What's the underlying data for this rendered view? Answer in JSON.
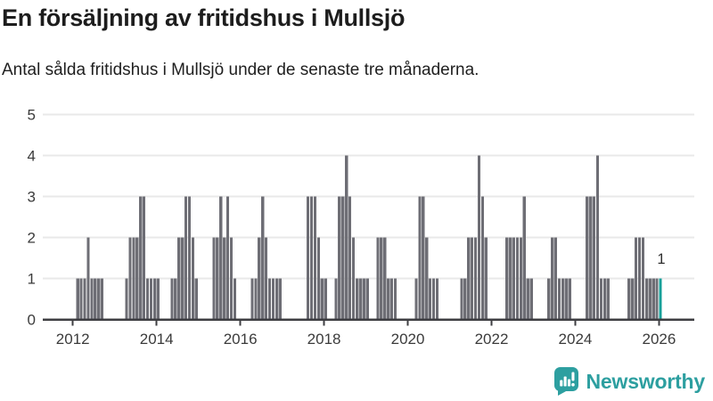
{
  "header": {
    "title": "En försäljning av fritidshus i Mullsjö",
    "subtitle": "Antal sålda fritidshus i Mullsjö under de senaste tre månaderna."
  },
  "footer": {
    "brand": "Newsworthy",
    "brand_color": "#2d9fa0",
    "logo_icon": "speech-bubble-bar-chart-icon"
  },
  "chart_data": {
    "type": "bar",
    "title": "En försäljning av fritidshus i Mullsjö",
    "subtitle": "Antal sålda fritidshus i Mullsjö under de senaste tre månaderna.",
    "x_start": "2012-01",
    "x_interval": "month",
    "x_ticks": [
      "2012",
      "2014",
      "2016",
      "2018",
      "2020",
      "2022",
      "2024",
      "2026"
    ],
    "y_ticks": [
      0,
      1,
      2,
      3,
      4,
      5
    ],
    "ylim": [
      0,
      5
    ],
    "grid": true,
    "legend": "none",
    "bar_color": "#6e6e75",
    "highlight_color": "#17a09a",
    "grid_color": "#e9e9e9",
    "axis_color": "#3e3e42",
    "text_color": "#3b3b3b",
    "highlight_last": true,
    "last_value_label": "1",
    "series": [
      {
        "name": "Antal sålda fritidshus",
        "values": [
          0,
          1,
          1,
          1,
          2,
          1,
          1,
          1,
          1,
          0,
          0,
          0,
          0,
          0,
          0,
          1,
          2,
          2,
          2,
          3,
          3,
          1,
          1,
          1,
          1,
          0,
          0,
          0,
          1,
          1,
          2,
          2,
          3,
          3,
          2,
          1,
          0,
          0,
          0,
          0,
          2,
          2,
          3,
          2,
          3,
          2,
          1,
          0,
          0,
          0,
          0,
          1,
          1,
          2,
          3,
          2,
          1,
          1,
          1,
          1,
          0,
          0,
          0,
          0,
          0,
          0,
          0,
          3,
          3,
          3,
          2,
          1,
          1,
          0,
          0,
          1,
          3,
          3,
          4,
          3,
          2,
          1,
          1,
          1,
          1,
          0,
          0,
          2,
          2,
          2,
          1,
          1,
          1,
          0,
          0,
          0,
          0,
          0,
          1,
          3,
          3,
          2,
          1,
          1,
          1,
          0,
          0,
          0,
          0,
          0,
          0,
          1,
          1,
          2,
          2,
          2,
          4,
          3,
          2,
          0,
          0,
          0,
          0,
          0,
          2,
          2,
          2,
          2,
          2,
          3,
          1,
          1,
          0,
          0,
          0,
          0,
          1,
          2,
          2,
          1,
          1,
          1,
          1,
          0,
          0,
          0,
          0,
          3,
          3,
          3,
          4,
          1,
          1,
          1,
          0,
          0,
          0,
          0,
          0,
          1,
          1,
          2,
          2,
          2,
          1,
          1,
          1,
          1,
          1
        ]
      }
    ]
  }
}
